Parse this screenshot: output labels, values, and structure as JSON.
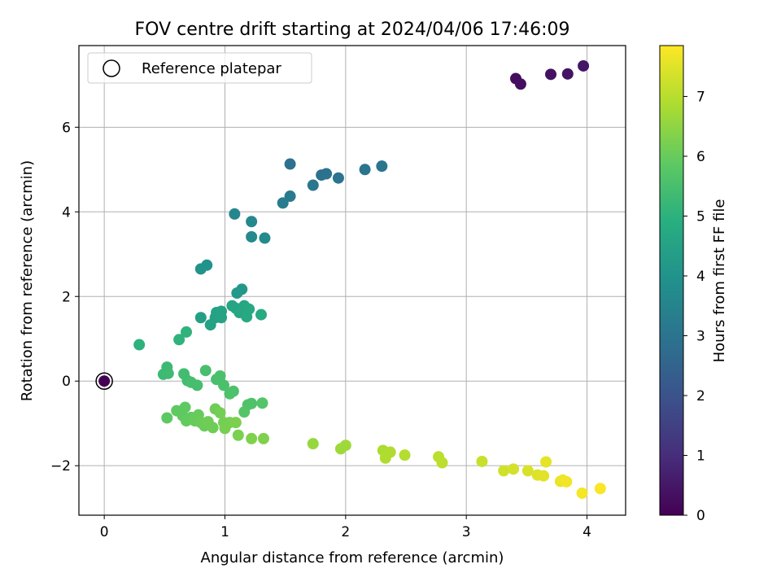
{
  "chart_data": {
    "type": "scatter",
    "title": "FOV centre drift starting at 2024/04/06 17:46:09",
    "xlabel": "Angular distance from reference (arcmin)",
    "ylabel": "Rotation from reference (arcmin)",
    "xlim": [
      -0.21,
      4.32
    ],
    "ylim": [
      -3.17,
      7.93
    ],
    "xticks": [
      0,
      1,
      2,
      3,
      4
    ],
    "yticks": [
      -2,
      0,
      2,
      4,
      6
    ],
    "grid": true,
    "legend": {
      "placement": "top-left",
      "entries": [
        "Reference platepar"
      ]
    },
    "colorbar": {
      "label": "Hours from first FF file",
      "colormap": "viridis",
      "range": [
        0,
        7.85
      ],
      "ticks": [
        0,
        1,
        2,
        3,
        4,
        5,
        6,
        7
      ]
    },
    "reference_point": {
      "x": 0,
      "y": 0
    },
    "points": [
      {
        "x": 3.41,
        "y": 7.15,
        "c": 0.25
      },
      {
        "x": 3.45,
        "y": 7.02,
        "c": 0.3
      },
      {
        "x": 3.7,
        "y": 7.25,
        "c": 0.35
      },
      {
        "x": 3.84,
        "y": 7.26,
        "c": 0.4
      },
      {
        "x": 3.97,
        "y": 7.45,
        "c": 0.45
      },
      {
        "x": 1.54,
        "y": 5.13,
        "c": 2.9
      },
      {
        "x": 1.8,
        "y": 4.87,
        "c": 2.9
      },
      {
        "x": 1.84,
        "y": 4.9,
        "c": 2.95
      },
      {
        "x": 1.94,
        "y": 4.8,
        "c": 3.0
      },
      {
        "x": 2.16,
        "y": 5.0,
        "c": 3.0
      },
      {
        "x": 2.3,
        "y": 5.08,
        "c": 3.05
      },
      {
        "x": 1.73,
        "y": 4.63,
        "c": 3.1
      },
      {
        "x": 1.54,
        "y": 4.37,
        "c": 3.2
      },
      {
        "x": 1.48,
        "y": 4.21,
        "c": 3.25
      },
      {
        "x": 1.08,
        "y": 3.95,
        "c": 3.6
      },
      {
        "x": 1.22,
        "y": 3.77,
        "c": 3.65
      },
      {
        "x": 1.22,
        "y": 3.41,
        "c": 3.7
      },
      {
        "x": 1.33,
        "y": 3.38,
        "c": 3.75
      },
      {
        "x": 0.8,
        "y": 2.65,
        "c": 4.0
      },
      {
        "x": 0.85,
        "y": 2.74,
        "c": 4.0
      },
      {
        "x": 1.14,
        "y": 2.17,
        "c": 4.15
      },
      {
        "x": 1.1,
        "y": 2.08,
        "c": 4.2
      },
      {
        "x": 0.8,
        "y": 1.5,
        "c": 4.4
      },
      {
        "x": 0.88,
        "y": 1.33,
        "c": 4.45
      },
      {
        "x": 0.92,
        "y": 1.5,
        "c": 4.5
      },
      {
        "x": 0.93,
        "y": 1.62,
        "c": 4.5
      },
      {
        "x": 0.97,
        "y": 1.65,
        "c": 4.55
      },
      {
        "x": 0.97,
        "y": 1.5,
        "c": 4.55
      },
      {
        "x": 1.06,
        "y": 1.78,
        "c": 4.6
      },
      {
        "x": 1.09,
        "y": 1.72,
        "c": 4.6
      },
      {
        "x": 1.12,
        "y": 1.62,
        "c": 4.65
      },
      {
        "x": 1.16,
        "y": 1.78,
        "c": 4.65
      },
      {
        "x": 1.18,
        "y": 1.52,
        "c": 4.7
      },
      {
        "x": 1.2,
        "y": 1.7,
        "c": 4.7
      },
      {
        "x": 1.3,
        "y": 1.57,
        "c": 4.75
      },
      {
        "x": 0.29,
        "y": 0.86,
        "c": 5.0
      },
      {
        "x": 0.62,
        "y": 0.98,
        "c": 5.05
      },
      {
        "x": 0.68,
        "y": 1.16,
        "c": 5.05
      },
      {
        "x": 0.49,
        "y": 0.16,
        "c": 5.3
      },
      {
        "x": 0.52,
        "y": 0.33,
        "c": 5.3
      },
      {
        "x": 0.53,
        "y": 0.18,
        "c": 5.35
      },
      {
        "x": 0.66,
        "y": 0.17,
        "c": 5.4
      },
      {
        "x": 0.69,
        "y": 0.01,
        "c": 5.4
      },
      {
        "x": 0.72,
        "y": -0.03,
        "c": 5.45
      },
      {
        "x": 0.77,
        "y": -0.1,
        "c": 5.45
      },
      {
        "x": 0.84,
        "y": 0.25,
        "c": 5.5
      },
      {
        "x": 0.93,
        "y": 0.04,
        "c": 5.5
      },
      {
        "x": 0.96,
        "y": 0.12,
        "c": 5.55
      },
      {
        "x": 0.99,
        "y": -0.1,
        "c": 5.55
      },
      {
        "x": 1.04,
        "y": -0.3,
        "c": 5.6
      },
      {
        "x": 1.07,
        "y": -0.24,
        "c": 5.6
      },
      {
        "x": 1.19,
        "y": -0.56,
        "c": 5.65
      },
      {
        "x": 1.22,
        "y": -0.53,
        "c": 5.65
      },
      {
        "x": 1.31,
        "y": -0.52,
        "c": 5.7
      },
      {
        "x": 1.16,
        "y": -0.73,
        "c": 5.7
      },
      {
        "x": 0.52,
        "y": -0.87,
        "c": 5.85
      },
      {
        "x": 0.6,
        "y": -0.7,
        "c": 5.9
      },
      {
        "x": 0.65,
        "y": -0.82,
        "c": 5.9
      },
      {
        "x": 0.67,
        "y": -0.62,
        "c": 5.9
      },
      {
        "x": 0.68,
        "y": -0.94,
        "c": 5.95
      },
      {
        "x": 0.72,
        "y": -0.86,
        "c": 5.95
      },
      {
        "x": 0.75,
        "y": -0.94,
        "c": 6.0
      },
      {
        "x": 0.78,
        "y": -0.8,
        "c": 6.0
      },
      {
        "x": 0.8,
        "y": -0.98,
        "c": 6.05
      },
      {
        "x": 0.83,
        "y": -1.06,
        "c": 6.05
      },
      {
        "x": 0.86,
        "y": -0.96,
        "c": 6.1
      },
      {
        "x": 0.9,
        "y": -1.1,
        "c": 6.1
      },
      {
        "x": 0.92,
        "y": -0.66,
        "c": 6.1
      },
      {
        "x": 0.96,
        "y": -0.75,
        "c": 6.15
      },
      {
        "x": 0.99,
        "y": -0.98,
        "c": 6.15
      },
      {
        "x": 1.0,
        "y": -1.12,
        "c": 6.2
      },
      {
        "x": 1.04,
        "y": -0.98,
        "c": 6.2
      },
      {
        "x": 1.09,
        "y": -0.98,
        "c": 6.25
      },
      {
        "x": 1.11,
        "y": -1.28,
        "c": 6.25
      },
      {
        "x": 1.22,
        "y": -1.36,
        "c": 6.3
      },
      {
        "x": 1.32,
        "y": -1.36,
        "c": 6.3
      },
      {
        "x": 1.73,
        "y": -1.48,
        "c": 6.6
      },
      {
        "x": 1.96,
        "y": -1.6,
        "c": 6.7
      },
      {
        "x": 2.0,
        "y": -1.52,
        "c": 6.7
      },
      {
        "x": 2.31,
        "y": -1.64,
        "c": 6.85
      },
      {
        "x": 2.33,
        "y": -1.82,
        "c": 6.9
      },
      {
        "x": 2.37,
        "y": -1.68,
        "c": 6.9
      },
      {
        "x": 2.49,
        "y": -1.75,
        "c": 6.95
      },
      {
        "x": 2.77,
        "y": -1.79,
        "c": 7.05
      },
      {
        "x": 2.8,
        "y": -1.93,
        "c": 7.05
      },
      {
        "x": 3.13,
        "y": -1.9,
        "c": 7.2
      },
      {
        "x": 3.31,
        "y": -2.12,
        "c": 7.3
      },
      {
        "x": 3.39,
        "y": -2.08,
        "c": 7.35
      },
      {
        "x": 3.51,
        "y": -2.12,
        "c": 7.4
      },
      {
        "x": 3.59,
        "y": -2.22,
        "c": 7.45
      },
      {
        "x": 3.64,
        "y": -2.24,
        "c": 7.5
      },
      {
        "x": 3.66,
        "y": -1.91,
        "c": 7.55
      },
      {
        "x": 3.78,
        "y": -2.37,
        "c": 7.6
      },
      {
        "x": 3.8,
        "y": -2.34,
        "c": 7.65
      },
      {
        "x": 3.83,
        "y": -2.38,
        "c": 7.7
      },
      {
        "x": 3.96,
        "y": -2.65,
        "c": 7.75
      },
      {
        "x": 4.11,
        "y": -2.54,
        "c": 7.8
      }
    ]
  }
}
